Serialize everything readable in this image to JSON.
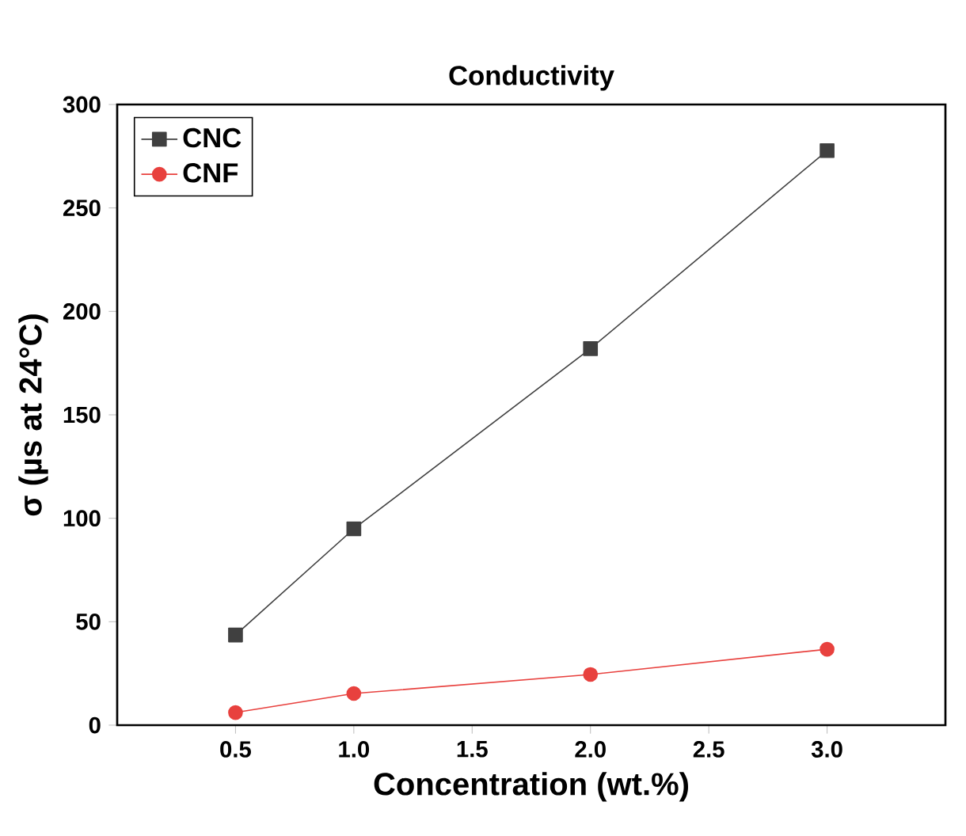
{
  "chart_data": {
    "type": "line",
    "title": "Conductivity",
    "xlabel": "Concentration (wt.%)",
    "ylabel": "σ (µs at 24°C)",
    "x": [
      0.5,
      1.0,
      2.0,
      3.0
    ],
    "series": [
      {
        "name": "CNC",
        "color": "#404040",
        "marker": "square",
        "values": [
          43.6,
          94.9,
          182,
          277.7
        ]
      },
      {
        "name": "CNF",
        "color": "#e8413e",
        "marker": "circle",
        "values": [
          6.1,
          15.3,
          24.5,
          36.7
        ]
      }
    ],
    "xlim": [
      0,
      3.5
    ],
    "xticks": [
      {
        "value": 0.5,
        "label": "0.5"
      },
      {
        "value": 1.0,
        "label": "1.0"
      },
      {
        "value": 1.5,
        "label": "1.5"
      },
      {
        "value": 2.0,
        "label": "2.0"
      },
      {
        "value": 2.5,
        "label": "2.5"
      },
      {
        "value": 3.0,
        "label": "3.0"
      }
    ],
    "ylim": [
      0,
      300
    ],
    "yticks": [
      0,
      50,
      100,
      150,
      200,
      250,
      300
    ],
    "legend": "top left",
    "grid": false,
    "line_style": "solid"
  }
}
